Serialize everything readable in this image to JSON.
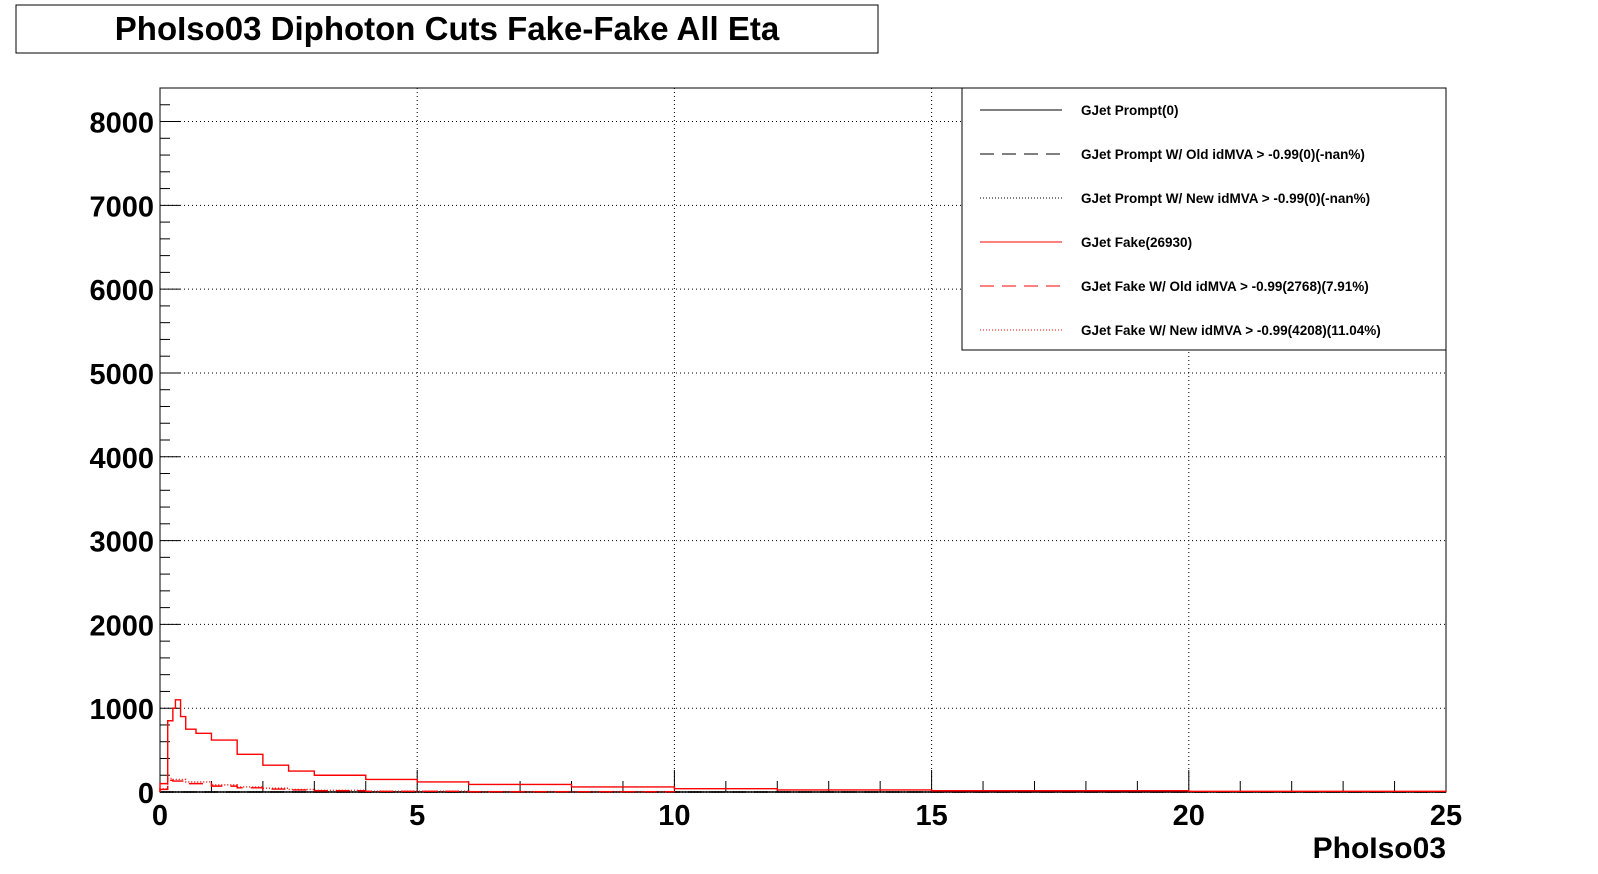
{
  "chart_data": {
    "type": "line",
    "title": "PhoIso03 Diphoton Cuts Fake-Fake All Eta",
    "xlabel": "PhoIso03",
    "ylabel": "",
    "xlim": [
      0,
      25
    ],
    "ylim": [
      0,
      8400
    ],
    "x_ticks": [
      "0",
      "5",
      "10",
      "15",
      "20",
      "25"
    ],
    "y_ticks": [
      "0",
      "1000",
      "2000",
      "3000",
      "4000",
      "5000",
      "6000",
      "7000",
      "8000"
    ],
    "grid": true,
    "legend_position": "top-right",
    "series": [
      {
        "name": "GJet Prompt(0)",
        "color": "#000000",
        "style": "solid",
        "x": [
          0,
          25
        ],
        "y": [
          0,
          0
        ]
      },
      {
        "name": "GJet Prompt W/ Old idMVA > -0.99(0)(-nan%)",
        "color": "#000000",
        "style": "dashed",
        "x": [
          0,
          25
        ],
        "y": [
          0,
          0
        ]
      },
      {
        "name": "GJet Prompt W/ New idMVA > -0.99(0)(-nan%)",
        "color": "#000000",
        "style": "dotted",
        "x": [
          0,
          25
        ],
        "y": [
          0,
          0
        ]
      },
      {
        "name": "GJet Fake(26930)",
        "color": "#ff0000",
        "style": "solid",
        "x": [
          0.05,
          0.15,
          0.25,
          0.3,
          0.4,
          0.5,
          0.7,
          1.0,
          1.5,
          2.0,
          2.5,
          3.0,
          4.0,
          5.0,
          6.0,
          8.0,
          10.0,
          12.0,
          15.0,
          20.0,
          25.0
        ],
        "y": [
          100,
          850,
          1000,
          1100,
          900,
          750,
          700,
          620,
          450,
          320,
          250,
          200,
          150,
          120,
          90,
          60,
          40,
          25,
          15,
          8,
          3
        ]
      },
      {
        "name": "GJet Fake W/ Old idMVA > -0.99(2768)(7.91%)",
        "color": "#ff0000",
        "style": "dashed",
        "x": [
          0.05,
          0.15,
          0.25,
          0.5,
          1.0,
          1.5,
          2.0,
          2.5,
          3.0,
          4.0,
          6.0,
          10.0
        ],
        "y": [
          30,
          140,
          130,
          100,
          70,
          50,
          35,
          25,
          15,
          8,
          4,
          1
        ]
      },
      {
        "name": "GJet Fake W/ New idMVA > -0.99(4208)(11.04%)",
        "color": "#ff0000",
        "style": "dotted",
        "x": [
          0.05,
          0.15,
          0.25,
          0.5,
          1.0,
          1.5,
          2.0,
          2.5,
          3.0,
          4.0,
          6.0,
          10.0
        ],
        "y": [
          40,
          160,
          150,
          120,
          85,
          60,
          45,
          30,
          20,
          10,
          5,
          2
        ]
      }
    ]
  }
}
